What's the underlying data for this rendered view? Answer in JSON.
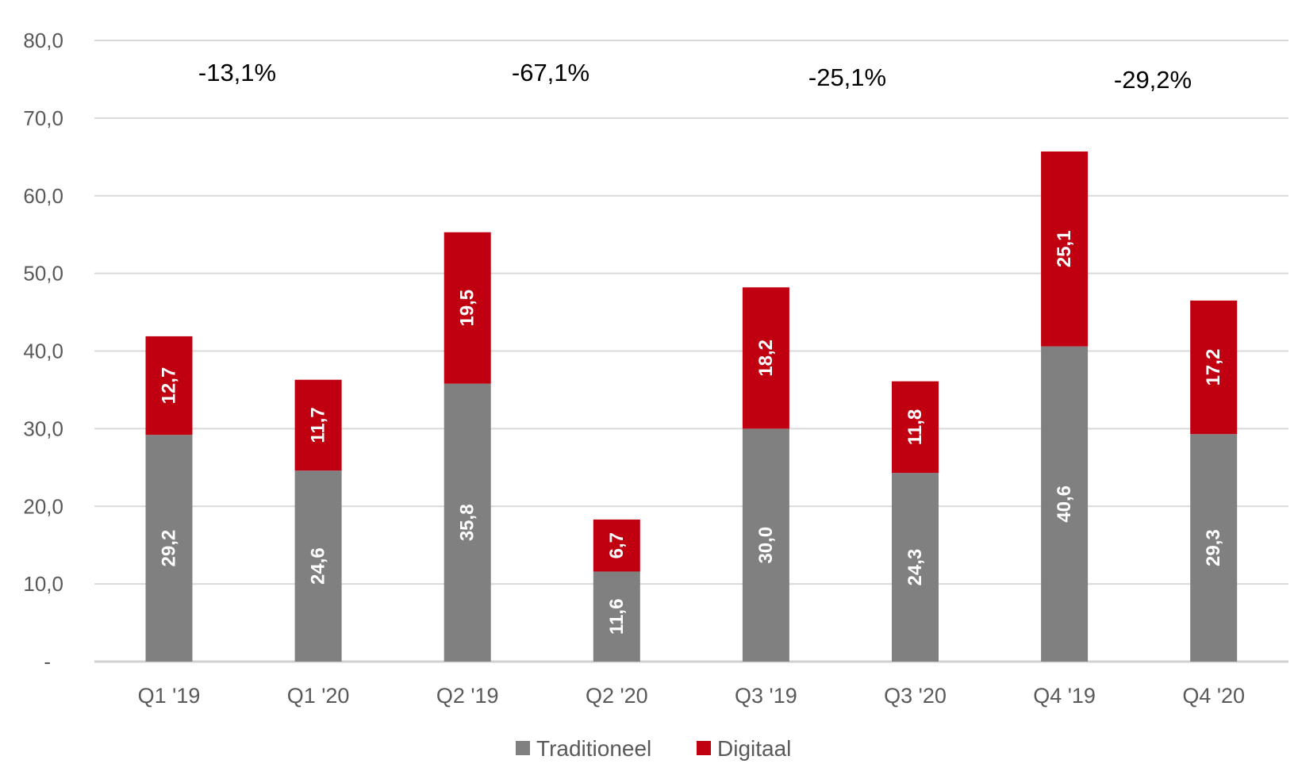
{
  "chart_data": {
    "type": "bar",
    "stacked": true,
    "title": "",
    "xlabel": "",
    "ylabel": "",
    "ylim": [
      0,
      80
    ],
    "y_ticks": [
      0,
      10,
      20,
      30,
      40,
      50,
      60,
      70,
      80
    ],
    "y_tick_labels": [
      "-",
      "10,0",
      "20,0",
      "30,0",
      "40,0",
      "50,0",
      "60,0",
      "70,0",
      "80,0"
    ],
    "grid": true,
    "categories": [
      "Q1 '19",
      "Q1 '20",
      "Q2 '19",
      "Q2 '20",
      "Q3 '19",
      "Q3 '20",
      "Q4 '19",
      "Q4 '20"
    ],
    "series": [
      {
        "name": "Traditioneel",
        "color": "#808080",
        "values": [
          29.2,
          24.6,
          35.8,
          11.6,
          30.0,
          24.3,
          40.6,
          29.3
        ],
        "labels": [
          "29,2",
          "24,6",
          "35,8",
          "11,6",
          "30,0",
          "24,3",
          "40,6",
          "29,3"
        ]
      },
      {
        "name": "Digitaal",
        "color": "#C00010",
        "values": [
          12.7,
          11.7,
          19.5,
          6.7,
          18.2,
          11.8,
          25.1,
          17.2
        ],
        "labels": [
          "12,7",
          "11,7",
          "19,5",
          "6,7",
          "18,2",
          "11,8",
          "25,1",
          "17,2"
        ]
      }
    ],
    "annotations": [
      {
        "text": "-13,1%",
        "between": [
          "Q1 '19",
          "Q1 '20"
        ]
      },
      {
        "text": "-67,1%",
        "between": [
          "Q2 '19",
          "Q2 '20"
        ]
      },
      {
        "text": "-25,1%",
        "between": [
          "Q3 '19",
          "Q3 '20"
        ]
      },
      {
        "text": "-29,2%",
        "between": [
          "Q4 '19",
          "Q4 '20"
        ]
      }
    ],
    "legend": {
      "placement": "bottom",
      "entries": [
        "Traditioneel",
        "Digitaal"
      ]
    }
  }
}
